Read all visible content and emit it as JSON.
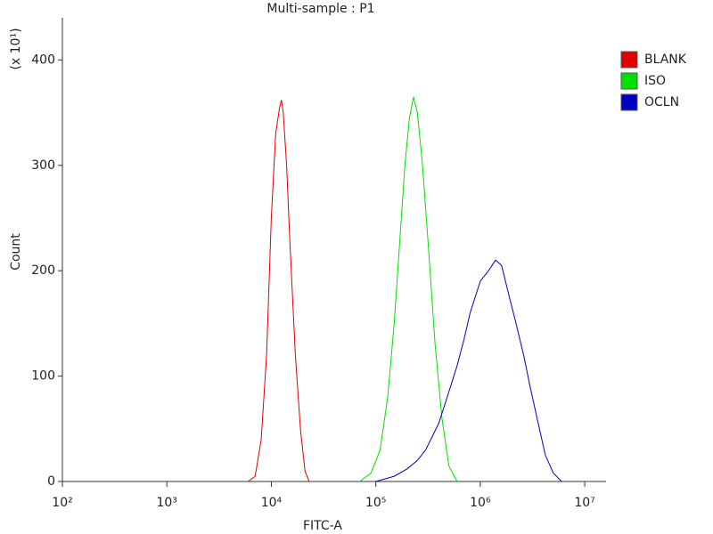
{
  "chart_data": {
    "type": "line",
    "title": "Multi-sample : P1",
    "x_label": "FITC-A",
    "y_label": "Count",
    "y_multiplier": "(x 10¹)",
    "xscale": "log",
    "xlim": [
      100,
      16000000
    ],
    "xticks": [
      {
        "value": 100,
        "label": "10²"
      },
      {
        "value": 1000,
        "label": "10³"
      },
      {
        "value": 10000,
        "label": "10⁴"
      },
      {
        "value": 100000,
        "label": "10⁵"
      },
      {
        "value": 1000000,
        "label": "10⁶"
      },
      {
        "value": 10000000,
        "label": "10⁷"
      }
    ],
    "ylim": [
      0,
      440
    ],
    "yticks": [
      0,
      100,
      200,
      300,
      400
    ],
    "legend": "right",
    "series": [
      {
        "name": "BLANK",
        "color": "#e00000",
        "x": [
          6000,
          7000,
          8000,
          9000,
          10000,
          11000,
          12000,
          12500,
          13000,
          14000,
          15000,
          17000,
          19000,
          21000,
          23000
        ],
        "values": [
          0,
          5,
          40,
          120,
          250,
          330,
          355,
          362,
          350,
          300,
          230,
          120,
          50,
          10,
          0
        ]
      },
      {
        "name": "ISO",
        "color": "#00e000",
        "x": [
          70000,
          90000,
          110000,
          130000,
          150000,
          170000,
          190000,
          210000,
          230000,
          250000,
          280000,
          320000,
          370000,
          430000,
          500000,
          600000
        ],
        "values": [
          0,
          8,
          30,
          80,
          150,
          230,
          300,
          345,
          365,
          350,
          300,
          220,
          130,
          60,
          15,
          0
        ]
      },
      {
        "name": "OCLN",
        "color": "#0000c0",
        "x": [
          100000,
          150000,
          200000,
          250000,
          300000,
          400000,
          500000,
          600000,
          700000,
          800000,
          1000000,
          1200000,
          1400000,
          1600000,
          1900000,
          2200000,
          2600000,
          3000000,
          3500000,
          4200000,
          5000000,
          6000000
        ],
        "values": [
          0,
          5,
          12,
          20,
          30,
          55,
          85,
          110,
          135,
          160,
          190,
          200,
          210,
          205,
          175,
          150,
          120,
          90,
          60,
          25,
          8,
          0
        ]
      }
    ]
  }
}
